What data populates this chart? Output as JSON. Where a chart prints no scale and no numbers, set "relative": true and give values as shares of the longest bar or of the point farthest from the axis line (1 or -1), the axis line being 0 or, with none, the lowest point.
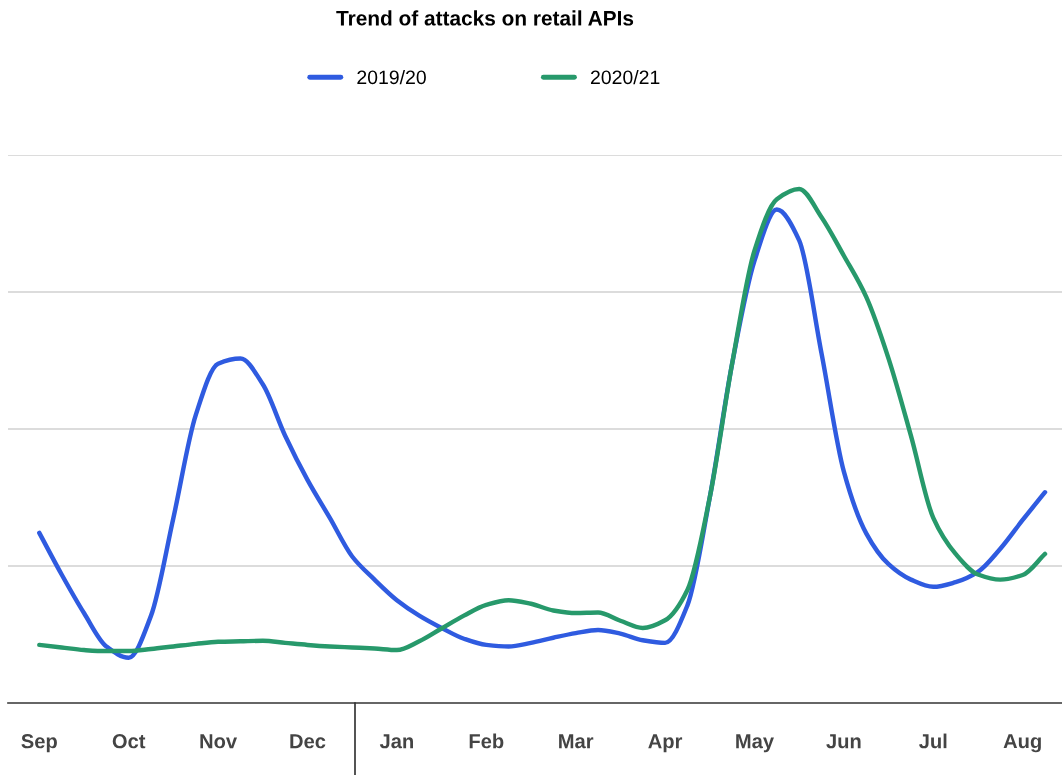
{
  "chart_data": {
    "type": "line",
    "title": "Trend of attacks on retail APIs",
    "relative": true,
    "categories": [
      "Sep",
      null,
      null,
      null,
      "Oct",
      null,
      null,
      null,
      "Nov",
      null,
      null,
      null,
      "Dec",
      null,
      null,
      null,
      "Jan",
      null,
      null,
      null,
      "Feb",
      null,
      null,
      null,
      "Mar",
      null,
      null,
      null,
      "Apr",
      null,
      null,
      null,
      "May",
      null,
      null,
      null,
      "Jun",
      null,
      null,
      null,
      "Jul",
      null,
      null,
      null,
      "Aug",
      null
    ],
    "series": [
      {
        "name": "2019/20",
        "color": "#2f5be0",
        "values": [
          0.331,
          0.25,
          0.175,
          0.11,
          0.088,
          0.17,
          0.36,
          0.56,
          0.66,
          0.67,
          0.62,
          0.52,
          0.434,
          0.36,
          0.285,
          0.24,
          0.2,
          0.17,
          0.146,
          0.125,
          0.113,
          0.11,
          0.117,
          0.127,
          0.136,
          0.142,
          0.135,
          0.122,
          0.117,
          0.19,
          0.4,
          0.66,
          0.86,
          0.96,
          0.9,
          0.68,
          0.45,
          0.33,
          0.27,
          0.24,
          0.226,
          0.235,
          0.255,
          0.3,
          0.356,
          0.41
        ]
      },
      {
        "name": "2020/21",
        "color": "#27996b",
        "values": [
          0.113,
          0.108,
          0.103,
          0.101,
          0.101,
          0.105,
          0.11,
          0.115,
          0.119,
          0.12,
          0.121,
          0.117,
          0.113,
          0.11,
          0.108,
          0.106,
          0.103,
          0.12,
          0.145,
          0.17,
          0.191,
          0.2,
          0.193,
          0.18,
          0.175,
          0.176,
          0.16,
          0.146,
          0.161,
          0.22,
          0.4,
          0.66,
          0.88,
          0.98,
          1,
          0.945,
          0.87,
          0.79,
          0.67,
          0.52,
          0.36,
          0.29,
          0.25,
          0.24,
          0.249,
          0.29
        ]
      }
    ],
    "grid": "y",
    "legend": "top",
    "marker": "none",
    "line_style": "solid"
  }
}
